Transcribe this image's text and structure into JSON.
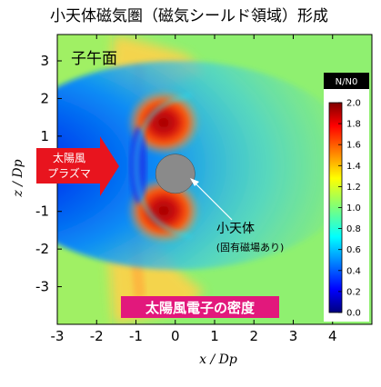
{
  "chart_data": {
    "type": "heatmap",
    "title": "小天体磁気圏（磁気シールド領域）形成",
    "panel_label": "子午面",
    "xlabel": "x / Dp",
    "ylabel": "z / Dp",
    "xlim": [
      -3,
      5
    ],
    "ylim": [
      -4,
      3.7
    ],
    "xticks": [
      "-3",
      "-2",
      "-1",
      "0",
      "1",
      "2",
      "3",
      "4"
    ],
    "yticks": [
      "3",
      "2",
      "1",
      "0",
      "-1",
      "-2",
      "-3"
    ],
    "colorbar": {
      "label": "N/N0",
      "range": [
        0.0,
        2.0
      ],
      "ticks": [
        "2.0",
        "1.8",
        "1.6",
        "1.4",
        "1.2",
        "1.0",
        "0.8",
        "0.6",
        "0.4",
        "0.2",
        "0.0"
      ],
      "colormap": "jet"
    },
    "body": {
      "center_x": 0,
      "center_z": 0,
      "radius": 0.5,
      "color": "#8a8a8a"
    },
    "annotations": {
      "solar_wind_line1": "太陽風",
      "solar_wind_line2": "プラズマ",
      "body_label": "小天体",
      "body_sublabel": "(固有磁場あり)",
      "caption": "太陽風電子の密度"
    },
    "colors": {
      "arrow": "#e8141e",
      "caption_bg": "#e2187c",
      "background_level": 0.95,
      "wake_level": 0.1,
      "bowshock_level": 1.5,
      "lobe_peak_level": 2.0
    }
  }
}
